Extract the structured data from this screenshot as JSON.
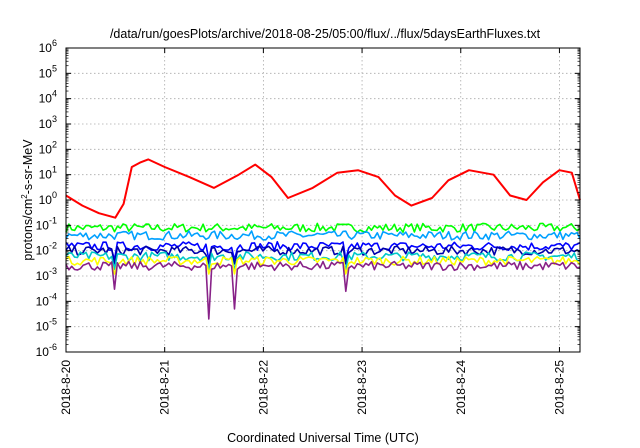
{
  "chart_data": {
    "type": "line",
    "title": "/data/run/goesPlots/archive/2018-08-25/05:00/flux/../flux/5daysEarthFluxes.txt",
    "xlabel": "Coordinated Universal Time (UTC)",
    "ylabel": {
      "base": "protons/cm",
      "sup": "2",
      "rest": "-s-sr-MeV"
    },
    "scale": {
      "y": "log"
    },
    "grid": true,
    "legend": "none",
    "xlim": [
      "2018-08-20T00:00",
      "2018-08-25T05:00"
    ],
    "ylim": [
      1e-06,
      1000000.0
    ],
    "x_ticks": [
      "2018-8-20",
      "2018-8-21",
      "2018-8-22",
      "2018-8-23",
      "2018-8-24",
      "2018-8-25"
    ],
    "y_ticks": [
      {
        "base": "10",
        "exp": "-6"
      },
      {
        "base": "10",
        "exp": "-5"
      },
      {
        "base": "10",
        "exp": "-4"
      },
      {
        "base": "10",
        "exp": "-3"
      },
      {
        "base": "10",
        "exp": "-2"
      },
      {
        "base": "10",
        "exp": "-1"
      },
      {
        "base": "10",
        "exp": "0"
      },
      {
        "base": "10",
        "exp": "1"
      },
      {
        "base": "10",
        "exp": "2"
      },
      {
        "base": "10",
        "exp": "3"
      },
      {
        "base": "10",
        "exp": "4"
      },
      {
        "base": "10",
        "exp": "5"
      },
      {
        "base": "10",
        "exp": "6"
      }
    ],
    "series": [
      {
        "color": "#ff0000",
        "x": [
          "2018-08-20T00:00",
          "2018-08-20T04:00",
          "2018-08-20T08:00",
          "2018-08-20T12:00",
          "2018-08-20T14:00",
          "2018-08-20T16:00",
          "2018-08-20T18:00",
          "2018-08-20T20:00",
          "2018-08-21T00:00",
          "2018-08-21T06:00",
          "2018-08-21T12:00",
          "2018-08-21T18:00",
          "2018-08-21T22:00",
          "2018-08-22T02:00",
          "2018-08-22T06:00",
          "2018-08-22T12:00",
          "2018-08-22T18:00",
          "2018-08-22T23:00",
          "2018-08-23T04:00",
          "2018-08-23T08:00",
          "2018-08-23T12:00",
          "2018-08-23T17:00",
          "2018-08-23T21:00",
          "2018-08-24T02:00",
          "2018-08-24T08:00",
          "2018-08-24T12:00",
          "2018-08-24T16:00",
          "2018-08-24T20:00",
          "2018-08-25T00:00",
          "2018-08-25T03:00",
          "2018-08-25T05:00"
        ],
        "values": [
          1.5,
          0.6,
          0.3,
          0.2,
          0.7,
          20,
          30,
          40,
          20,
          8,
          3,
          10,
          25,
          8,
          1.2,
          3,
          12,
          15,
          8,
          1.5,
          0.6,
          1.2,
          6,
          15,
          10,
          1.5,
          1.0,
          5,
          15,
          12,
          1.0
        ]
      },
      {
        "color": "#00ff00",
        "level": 0.08
      },
      {
        "color": "#00a0ff",
        "level": 0.04
      },
      {
        "color": "#0000ff",
        "level": 0.015
      },
      {
        "color": "#0000aa",
        "level": 0.01
      },
      {
        "color": "#00c8c8",
        "level": 0.006
      },
      {
        "color": "#ffff00",
        "level": 0.004
      },
      {
        "color": "#882288",
        "level": 0.0025,
        "dips": [
          [
            "2018-08-21T11:00",
            2e-05
          ],
          [
            "2018-08-21T17:00",
            5e-05
          ],
          [
            "2018-08-20T12:00",
            0.0003
          ],
          [
            "2018-08-22T20:00",
            0.00025
          ]
        ]
      }
    ]
  }
}
